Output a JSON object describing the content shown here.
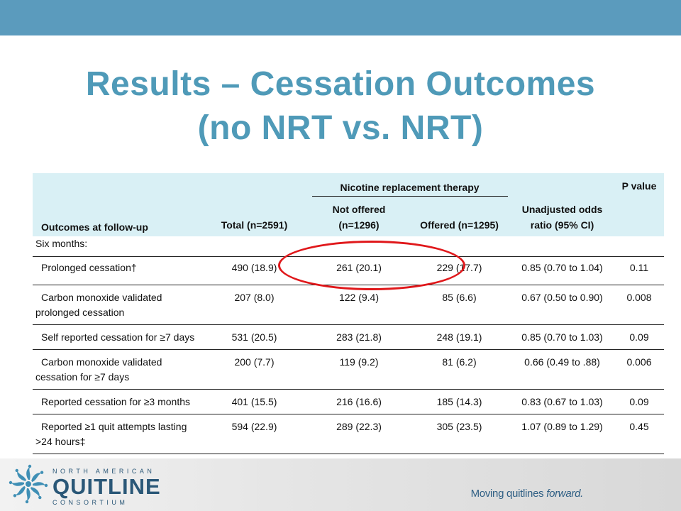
{
  "title": {
    "line1": "Results – Cessation Outcomes",
    "line2": "(no NRT vs. NRT)"
  },
  "table": {
    "group_header": "Nicotine replacement therapy",
    "headers": {
      "outcome": "Outcomes at follow-up",
      "total": "Total (n=2591)",
      "not_offered_1": "Not offered",
      "not_offered_2": "(n=1296)",
      "offered": "Offered (n=1295)",
      "odds_1": "Unadjusted odds",
      "odds_2": "ratio (95% CI)",
      "pvalue": "P value"
    },
    "section": "Six months:",
    "rows": [
      {
        "label": "Prolonged cessation†",
        "total": "490 (18.9)",
        "not_offered": "261 (20.1)",
        "offered": "229 (17.7)",
        "odds": "0.85 (0.70 to 1.04)",
        "p": "0.11"
      },
      {
        "label": "Carbon monoxide validated prolonged cessation",
        "total": "207 (8.0)",
        "not_offered": "122 (9.4)",
        "offered": "85 (6.6)",
        "odds": "0.67 (0.50 to 0.90)",
        "p": "0.008"
      },
      {
        "label": "Self reported cessation for ≥7 days",
        "total": "531 (20.5)",
        "not_offered": "283 (21.8)",
        "offered": "248 (19.1)",
        "odds": "0.85 (0.70 to 1.03)",
        "p": "0.09"
      },
      {
        "label": "Carbon monoxide validated cessation for ≥7 days",
        "total": "200 (7.7)",
        "not_offered": "119 (9.2)",
        "offered": "81 (6.2)",
        "odds": "0.66 (0.49 to .88)",
        "p": "0.006"
      },
      {
        "label": "Reported cessation for ≥3 months",
        "total": "401 (15.5)",
        "not_offered": "216 (16.6)",
        "offered": "185 (14.3)",
        "odds": "0.83 (0.67 to 1.03)",
        "p": "0.09"
      },
      {
        "label": "Reported ≥1 quit attempts lasting >24 hours‡",
        "total": "594 (22.9)",
        "not_offered": "289 (22.3)",
        "offered": "305 (23.5)",
        "odds": "1.07 (0.89 to 1.29)",
        "p": "0.45"
      }
    ]
  },
  "footer": {
    "logo_top": "NORTH AMERICAN",
    "logo_main": "QUITLINE",
    "logo_bottom": "CONSORTIUM",
    "tagline_plain": "Moving quitlines ",
    "tagline_emph": "forward."
  },
  "colors": {
    "top_bar": "#5b9bbd",
    "title": "#4f9ab8",
    "header_bg": "#d9f0f5",
    "highlight": "#e0181b",
    "logo": "#2a5777"
  }
}
